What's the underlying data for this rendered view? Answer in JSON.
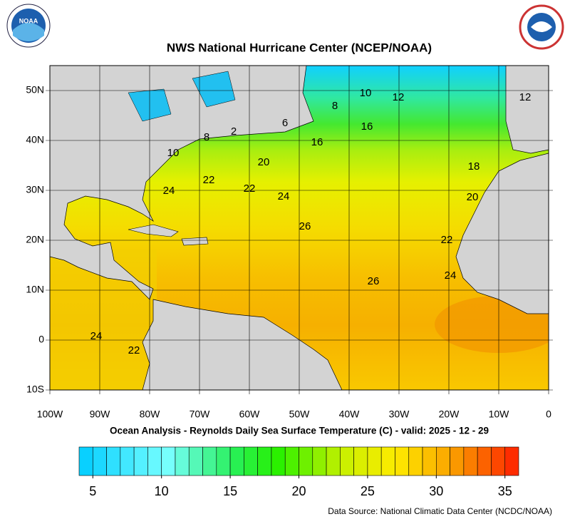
{
  "title": "NWS National Hurricane Center (NCEP/NOAA)",
  "logo_text": "NOAA",
  "map": {
    "lonlim": [
      -100,
      0
    ],
    "latlim": [
      -10,
      55
    ],
    "lonticks": [
      {
        "value": -100,
        "label": "100W"
      },
      {
        "value": -90,
        "label": "90W"
      },
      {
        "value": -80,
        "label": "80W"
      },
      {
        "value": -70,
        "label": "70W"
      },
      {
        "value": -60,
        "label": "60W"
      },
      {
        "value": -50,
        "label": "50W"
      },
      {
        "value": -40,
        "label": "40W"
      },
      {
        "value": -30,
        "label": "30W"
      },
      {
        "value": -20,
        "label": "20W"
      },
      {
        "value": -10,
        "label": "10W"
      },
      0
    ],
    "latticks": [
      {
        "value": -10,
        "label": "10S"
      },
      0,
      {
        "value": 10,
        "label": "10N"
      },
      {
        "value": 20,
        "label": "20N"
      },
      {
        "value": 30,
        "label": "30N"
      },
      {
        "value": 40,
        "label": "40N"
      },
      {
        "value": 50,
        "label": "50N"
      }
    ],
    "contour_labels": [
      10,
      12,
      12,
      8,
      6,
      2,
      16,
      16,
      8,
      10,
      20,
      18,
      22,
      22,
      24,
      24,
      20,
      26,
      22,
      24,
      26,
      24,
      22
    ]
  },
  "subtitle": "Ocean Analysis - Reynolds Daily Sea Surface Temperature (C) - valid: 2025 - 12 - 29",
  "colorbar": {
    "lim": [
      4,
      36
    ],
    "ticks": [
      5,
      10,
      15,
      20,
      25,
      30,
      35
    ]
  },
  "source": "Data Source: National Climatic Data Center (NCDC/NOAA)"
}
